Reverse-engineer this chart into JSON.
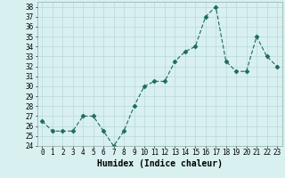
{
  "x": [
    0,
    1,
    2,
    3,
    4,
    5,
    6,
    7,
    8,
    9,
    10,
    11,
    12,
    13,
    14,
    15,
    16,
    17,
    18,
    19,
    20,
    21,
    22,
    23
  ],
  "y": [
    26.5,
    25.5,
    25.5,
    25.5,
    27,
    27,
    25.5,
    24,
    25.5,
    28,
    30,
    30.5,
    30.5,
    32.5,
    33.5,
    34,
    37,
    38,
    32.5,
    31.5,
    31.5,
    35,
    33,
    32
  ],
  "xlabel": "Humidex (Indice chaleur)",
  "ylim": [
    24,
    38.5
  ],
  "xlim": [
    -0.5,
    23.5
  ],
  "yticks": [
    24,
    25,
    26,
    27,
    28,
    29,
    30,
    31,
    32,
    33,
    34,
    35,
    36,
    37,
    38
  ],
  "xticks": [
    0,
    1,
    2,
    3,
    4,
    5,
    6,
    7,
    8,
    9,
    10,
    11,
    12,
    13,
    14,
    15,
    16,
    17,
    18,
    19,
    20,
    21,
    22,
    23
  ],
  "line_color": "#1a6b5a",
  "marker": "D",
  "marker_size": 2.5,
  "bg_color": "#d9f0f0",
  "grid_color": "#b8d8d8",
  "tick_fontsize": 5.5,
  "xlabel_fontsize": 7.0
}
